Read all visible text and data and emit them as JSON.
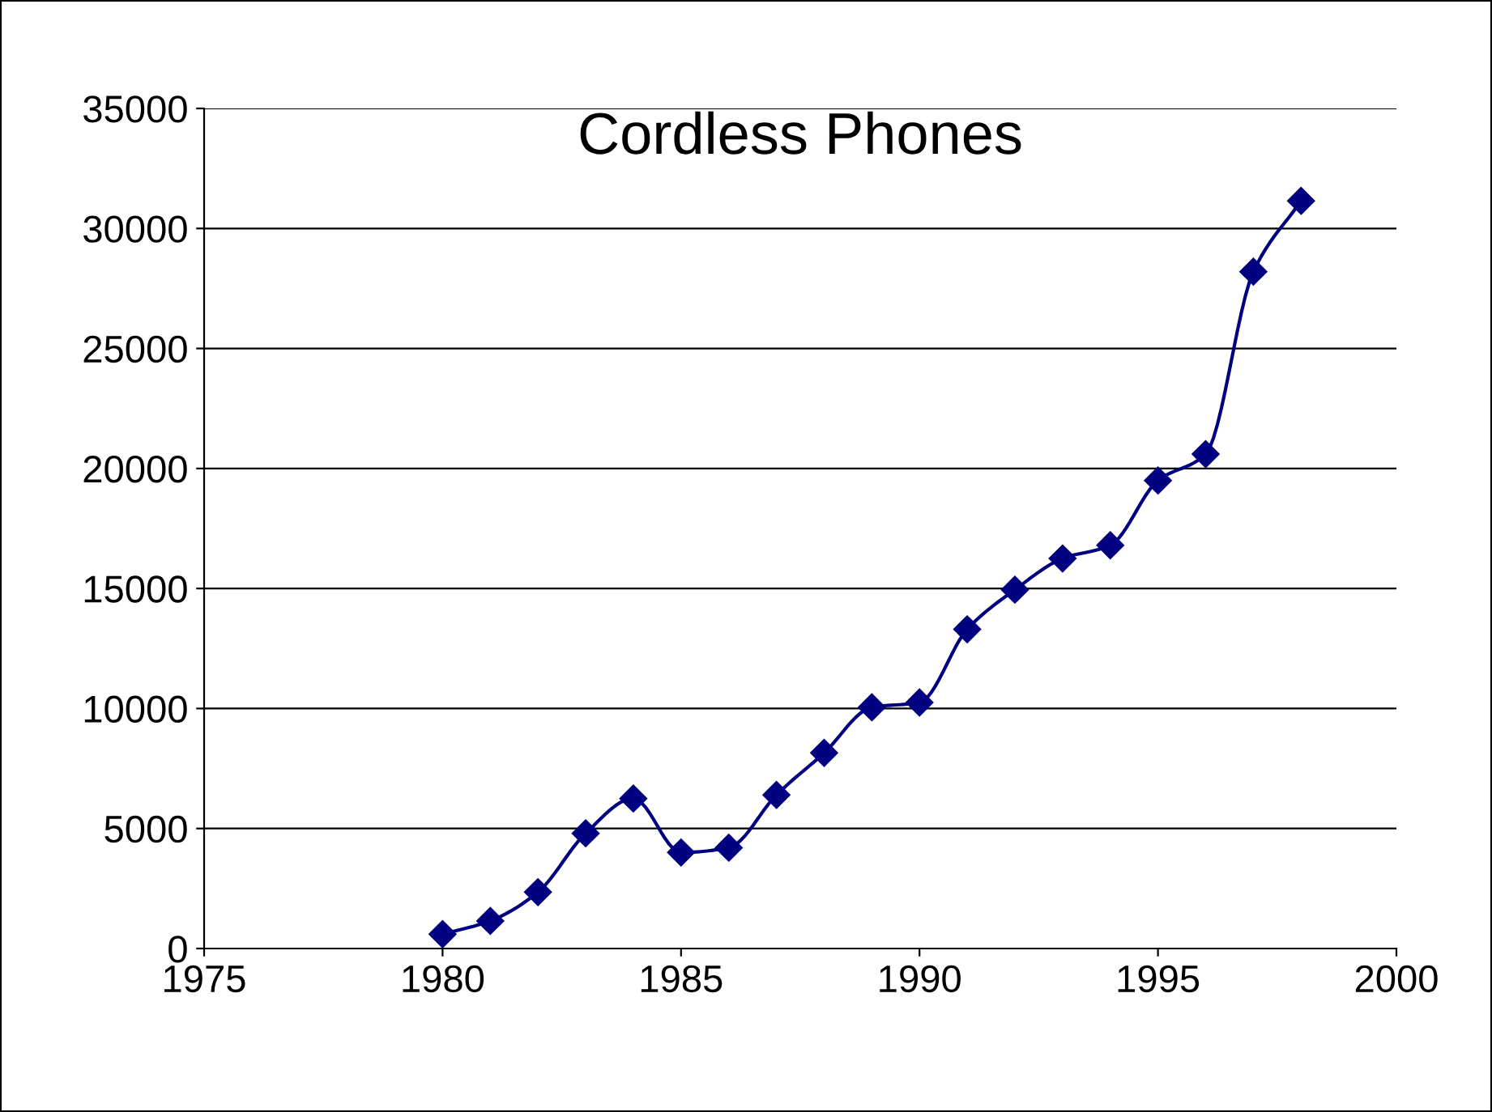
{
  "chart_data": {
    "type": "line",
    "title": "Cordless Phones",
    "x": [
      1980,
      1981,
      1982,
      1983,
      1984,
      1985,
      1986,
      1987,
      1988,
      1989,
      1990,
      1991,
      1992,
      1993,
      1994,
      1995,
      1996,
      1997,
      1998
    ],
    "series": [
      {
        "color": "#000080",
        "values": [
          600,
          1150,
          2350,
          4800,
          6250,
          4000,
          4200,
          6400,
          8150,
          10050,
          10250,
          13300,
          14950,
          16250,
          16800,
          19500,
          20600,
          28200,
          31150
        ]
      }
    ],
    "xlim": [
      1975,
      2000
    ],
    "xticks": [
      1975,
      1980,
      1985,
      1990,
      1995,
      2000
    ],
    "ylim": [
      0,
      35000
    ],
    "yticks": [
      0,
      5000,
      10000,
      15000,
      20000,
      25000,
      30000,
      35000
    ],
    "grid": "y",
    "legend": false,
    "marker": "diamond",
    "line_style": "solid"
  }
}
